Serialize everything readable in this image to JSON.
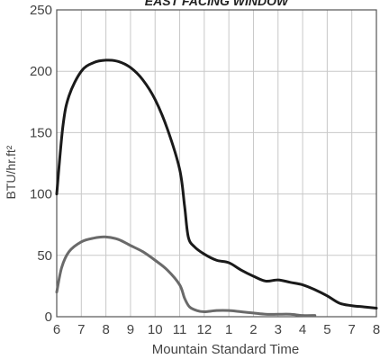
{
  "chart_data": {
    "type": "line",
    "title": "EAST FACING WINDOW",
    "xlabel": "Mountain Standard Time",
    "ylabel": "BTU/hr.ft²",
    "x_tick_labels": [
      "6",
      "7",
      "8",
      "9",
      "10",
      "11",
      "12",
      "1",
      "2",
      "3",
      "4",
      "5",
      "7",
      "8"
    ],
    "y_ticks": [
      0,
      50,
      100,
      150,
      200,
      250
    ],
    "ylim": [
      0,
      250
    ],
    "grid": true,
    "series": [
      {
        "color": "#1a1a1a",
        "points": [
          [
            6.0,
            100
          ],
          [
            6.25,
            155
          ],
          [
            6.5,
            180
          ],
          [
            7.0,
            200
          ],
          [
            7.5,
            207
          ],
          [
            8.0,
            209
          ],
          [
            8.5,
            208
          ],
          [
            9.0,
            203
          ],
          [
            9.5,
            193
          ],
          [
            10.0,
            177
          ],
          [
            10.5,
            153
          ],
          [
            11.0,
            120
          ],
          [
            11.2,
            90
          ],
          [
            11.35,
            65
          ],
          [
            11.6,
            57
          ],
          [
            12.0,
            51
          ],
          [
            12.5,
            46
          ],
          [
            13.0,
            44
          ],
          [
            13.5,
            38
          ],
          [
            14.0,
            33
          ],
          [
            14.5,
            29
          ],
          [
            15.0,
            30
          ],
          [
            15.5,
            28
          ],
          [
            16.0,
            26
          ],
          [
            16.5,
            22
          ],
          [
            17.0,
            17
          ],
          [
            17.5,
            11
          ],
          [
            18.0,
            9
          ],
          [
            18.5,
            8
          ],
          [
            19.0,
            7
          ]
        ]
      },
      {
        "color": "#6a6a6a",
        "points": [
          [
            6.0,
            20
          ],
          [
            6.2,
            40
          ],
          [
            6.5,
            53
          ],
          [
            7.0,
            61
          ],
          [
            7.5,
            64
          ],
          [
            8.0,
            65
          ],
          [
            8.5,
            63
          ],
          [
            9.0,
            58
          ],
          [
            9.5,
            53
          ],
          [
            10.0,
            46
          ],
          [
            10.5,
            38
          ],
          [
            11.0,
            26
          ],
          [
            11.2,
            15
          ],
          [
            11.4,
            8
          ],
          [
            11.7,
            5
          ],
          [
            12.0,
            4
          ],
          [
            12.5,
            5
          ],
          [
            13.0,
            5
          ],
          [
            13.5,
            4
          ],
          [
            14.0,
            3
          ],
          [
            14.5,
            2
          ],
          [
            15.0,
            2
          ],
          [
            15.5,
            2
          ],
          [
            16.0,
            1
          ],
          [
            16.5,
            1
          ]
        ]
      }
    ]
  }
}
